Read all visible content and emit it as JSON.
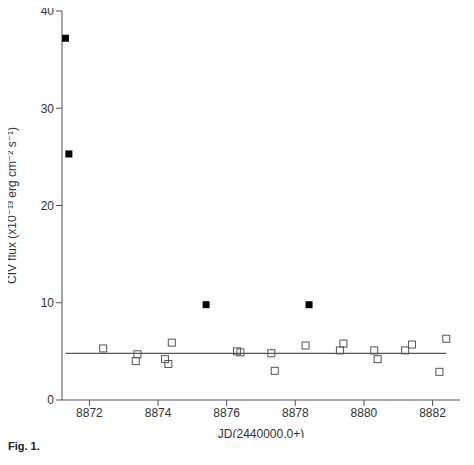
{
  "chart_data": {
    "type": "scatter",
    "x_label": "JD(2440000.0+)",
    "y_label": "CIV flux (x10⁻¹³ erg cm⁻² s⁻¹)",
    "caption": "Fig. 1.",
    "xlim": [
      8871.2,
      8882.8
    ],
    "xticks": [
      8872,
      8874,
      8876,
      8878,
      8880,
      8882
    ],
    "ylim": [
      0,
      40
    ],
    "yticks": [
      0,
      10,
      20,
      30,
      40
    ],
    "grid": false,
    "series": [
      {
        "type": "scatter",
        "marker": "square_filled",
        "color": "#000000",
        "x": [
          8871.3,
          8871.4,
          8875.4,
          8878.4
        ],
        "values": [
          37.2,
          25.3,
          9.8,
          9.8
        ]
      },
      {
        "type": "scatter",
        "marker": "square_open",
        "color": "#555555",
        "x": [
          8872.4,
          8873.35,
          8873.4,
          8874.2,
          8874.3,
          8874.4,
          8876.3,
          8876.4,
          8877.3,
          8877.4,
          8878.3,
          8879.3,
          8879.4,
          8880.3,
          8880.4,
          8881.2,
          8881.4,
          8882.2,
          8882.4
        ],
        "values": [
          5.3,
          4.0,
          4.7,
          4.2,
          3.7,
          5.9,
          5.0,
          4.9,
          4.8,
          3.0,
          5.6,
          5.1,
          5.8,
          5.1,
          4.2,
          5.1,
          5.7,
          2.9,
          6.3
        ]
      },
      {
        "type": "line",
        "color": "#555555",
        "x": [
          8871.3,
          8882.4
        ],
        "values": [
          4.8,
          4.8
        ]
      }
    ]
  }
}
